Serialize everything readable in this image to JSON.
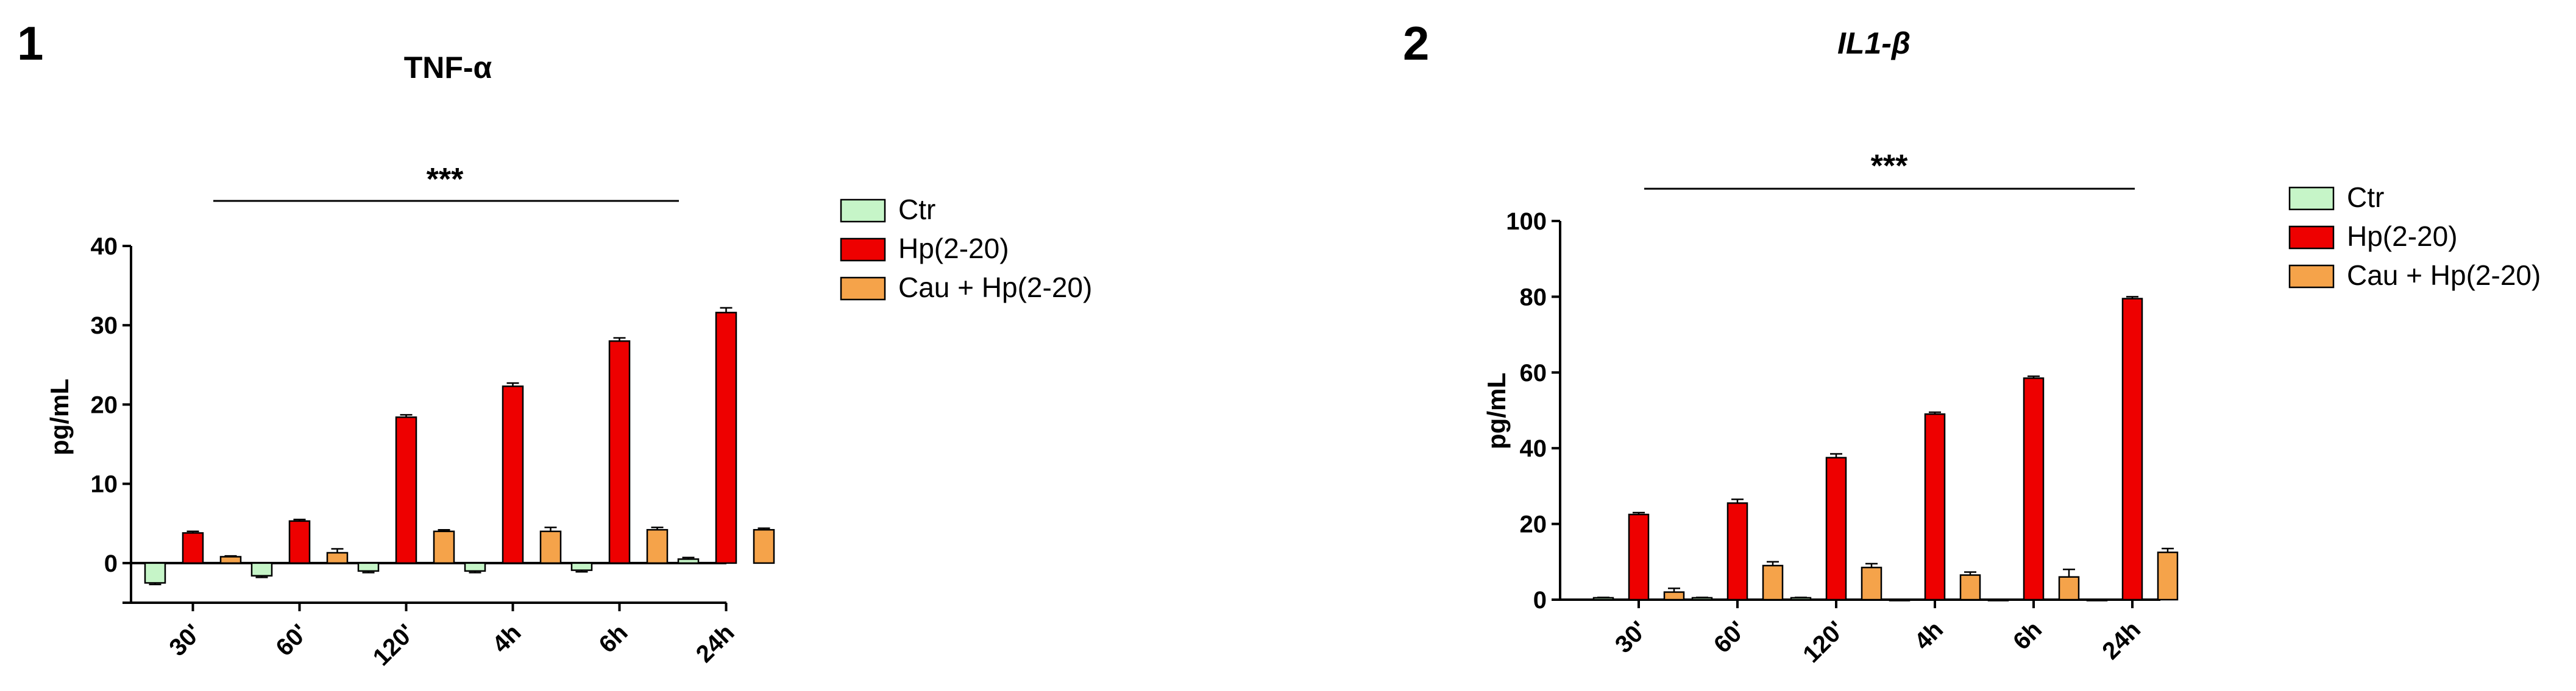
{
  "colors": {
    "ctr": "#c6f5c8",
    "hp": "#ee0000",
    "cau": "#f5a34a",
    "axis": "#000000"
  },
  "chart_data": [
    {
      "type": "bar",
      "panel": "1",
      "title": "TNF-α",
      "title_italic": false,
      "ylabel": "pg/mL",
      "xlabel": "",
      "ylim": [
        -5,
        40
      ],
      "yticks": [
        0,
        10,
        20,
        30,
        40
      ],
      "categories": [
        "30'",
        "60'",
        "120'",
        "4h",
        "6h",
        "24h"
      ],
      "series": [
        {
          "name": "Ctr",
          "color_key": "ctr",
          "values": [
            -2.5,
            -1.6,
            -1.0,
            -1.0,
            -0.9,
            0.5
          ],
          "errors": [
            0.2,
            0.2,
            0.2,
            0.2,
            0.2,
            0.2
          ]
        },
        {
          "name": "Hp(2-20)",
          "color_key": "hp",
          "values": [
            3.8,
            5.3,
            18.4,
            22.3,
            28.0,
            31.6
          ],
          "errors": [
            0.2,
            0.2,
            0.3,
            0.4,
            0.4,
            0.6
          ]
        },
        {
          "name": "Cau + Hp(2-20)",
          "color_key": "cau",
          "values": [
            0.8,
            1.3,
            4.0,
            4.0,
            4.2,
            4.2
          ],
          "errors": [
            0.1,
            0.5,
            0.2,
            0.5,
            0.3,
            0.2
          ]
        }
      ],
      "significance": "***",
      "legend": "right"
    },
    {
      "type": "bar",
      "panel": "2",
      "title": "IL1-β",
      "title_italic": true,
      "ylabel": "pg/mL",
      "xlabel": "",
      "ylim": [
        0,
        100
      ],
      "yticks": [
        0,
        20,
        40,
        60,
        80,
        100
      ],
      "categories": [
        "30'",
        "60'",
        "120'",
        "4h",
        "6h",
        "24h"
      ],
      "series": [
        {
          "name": "Ctr",
          "color_key": "ctr",
          "values": [
            0.5,
            0.5,
            0.5,
            0,
            0,
            0
          ],
          "errors": [
            0.1,
            0.1,
            0.1,
            0,
            0,
            0
          ]
        },
        {
          "name": "Hp(2-20)",
          "color_key": "hp",
          "values": [
            22.5,
            25.5,
            37.5,
            49.0,
            58.5,
            79.5
          ],
          "errors": [
            0.5,
            1.0,
            1.0,
            0.5,
            0.5,
            0.5
          ]
        },
        {
          "name": "Cau + Hp(2-20)",
          "color_key": "cau",
          "values": [
            2.0,
            9.0,
            8.5,
            6.5,
            6.0,
            12.5
          ],
          "errors": [
            1.0,
            1.0,
            1.0,
            0.8,
            2.0,
            1.0
          ]
        }
      ],
      "significance": "***",
      "legend": "right"
    }
  ]
}
